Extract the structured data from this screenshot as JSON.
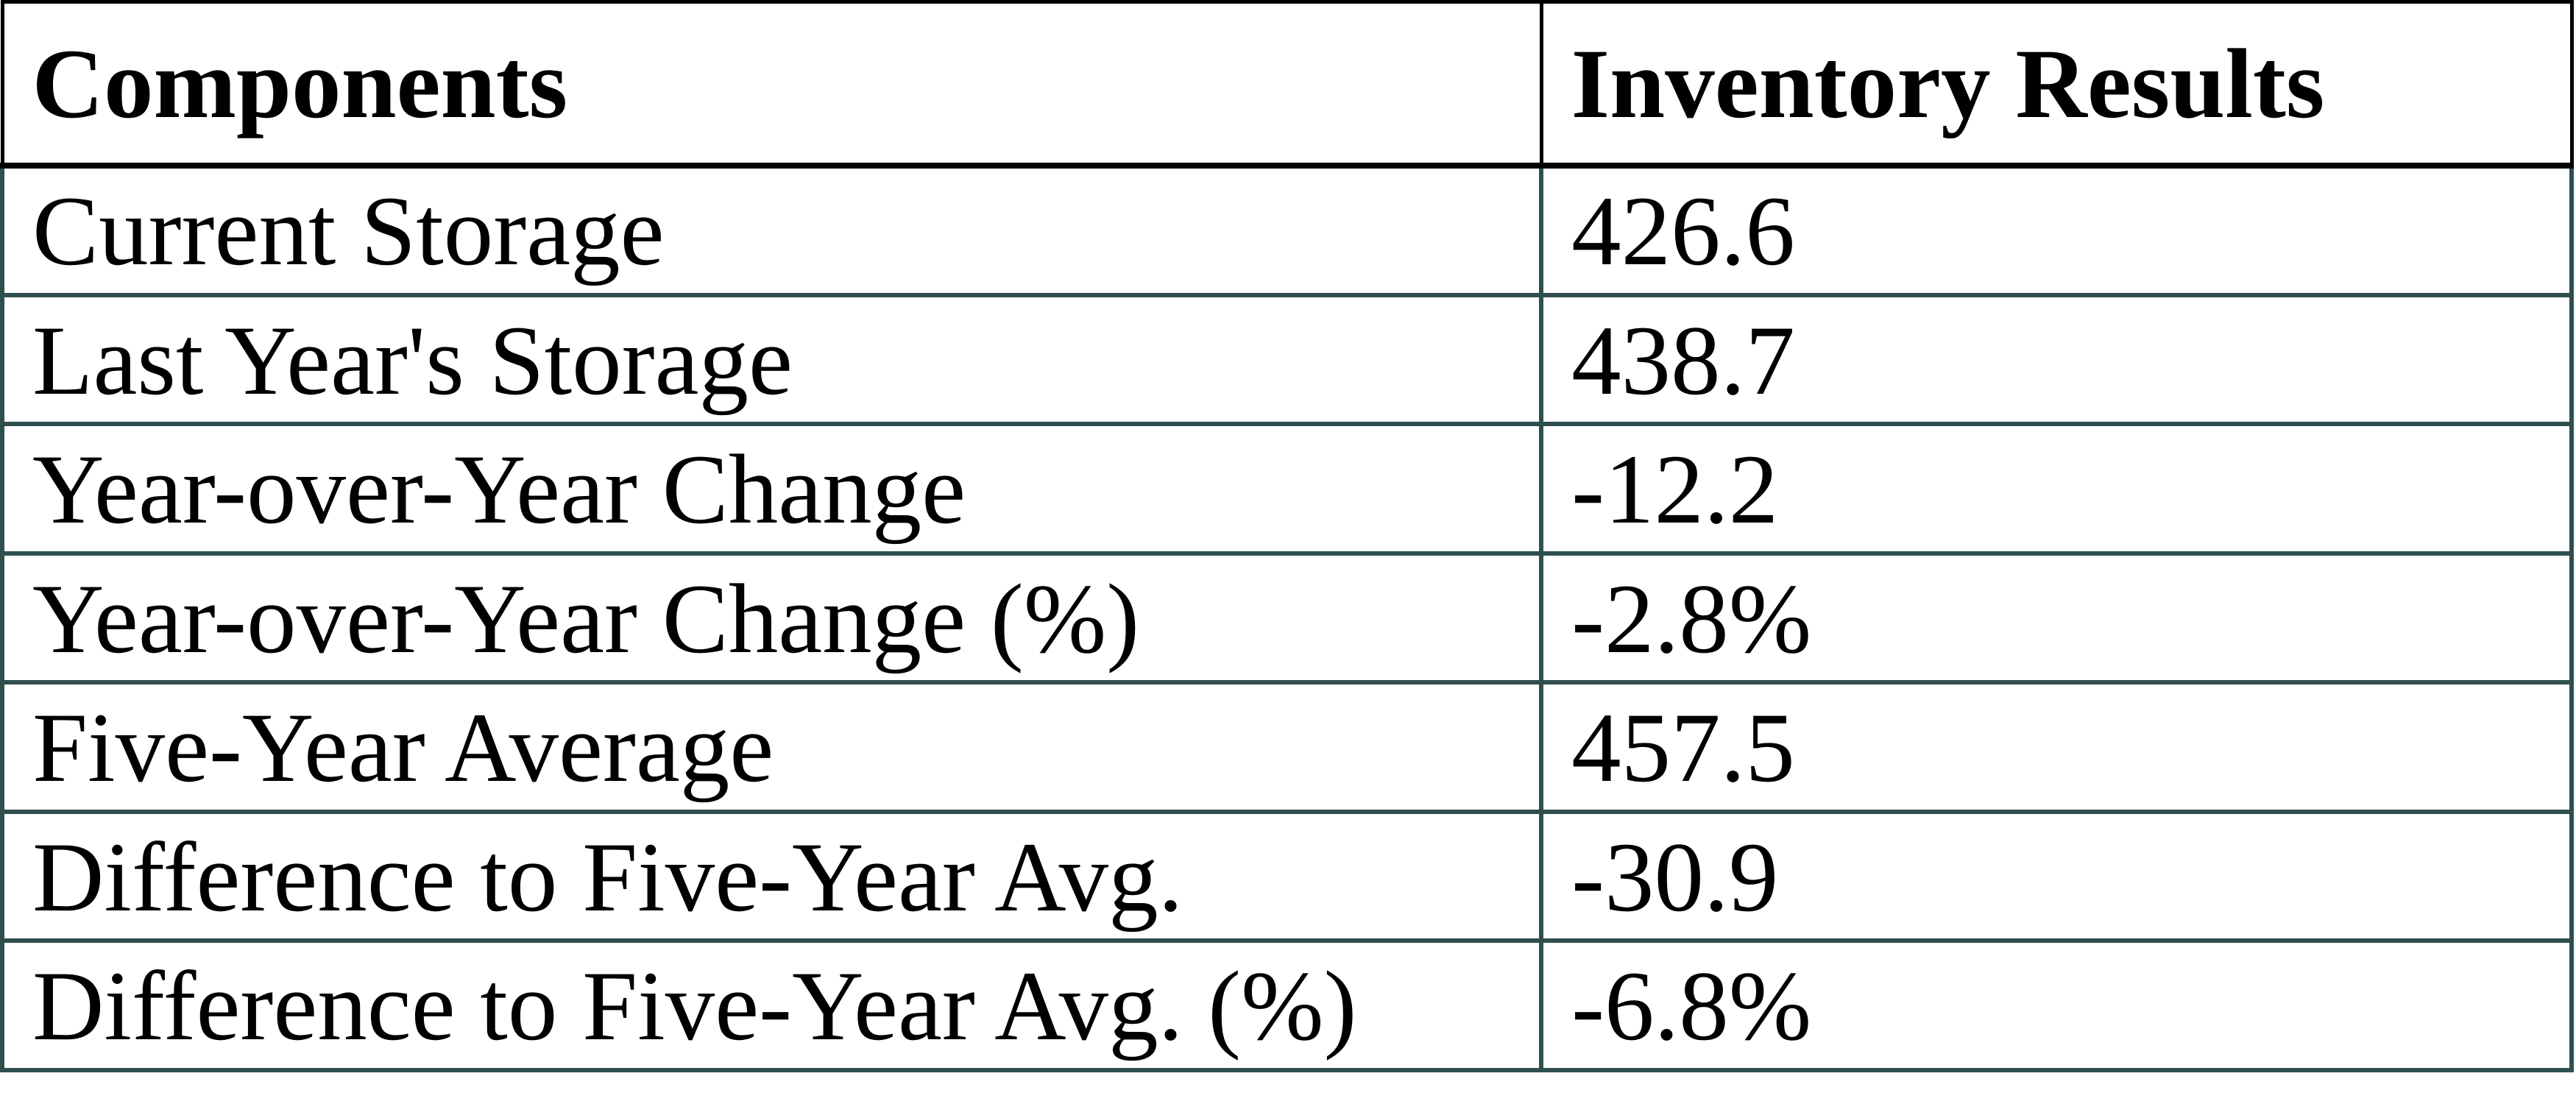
{
  "chart_data": {
    "type": "table",
    "title": "",
    "columns": [
      "Components",
      "Inventory Results"
    ],
    "rows": [
      [
        "Current Storage",
        "426.6"
      ],
      [
        "Last Year's Storage",
        "438.7"
      ],
      [
        "Year-over-Year Change",
        "-12.2"
      ],
      [
        "Year-over-Year Change (%)",
        "-2.8%"
      ],
      [
        "Five-Year Average",
        "457.5"
      ],
      [
        "Difference to Five-Year Avg.",
        "-30.9"
      ],
      [
        "Difference to Five-Year Avg. (%)",
        "-6.8%"
      ]
    ],
    "layout_hints": {
      "header_row_bold": true,
      "grid": true,
      "header_border_color": "#000000",
      "body_border_color": "#2F4F4F"
    }
  },
  "colors": {
    "border_body": "#2F4F4F",
    "border_header": "#000000",
    "text": "#000000",
    "background": "#FFFFFF"
  }
}
